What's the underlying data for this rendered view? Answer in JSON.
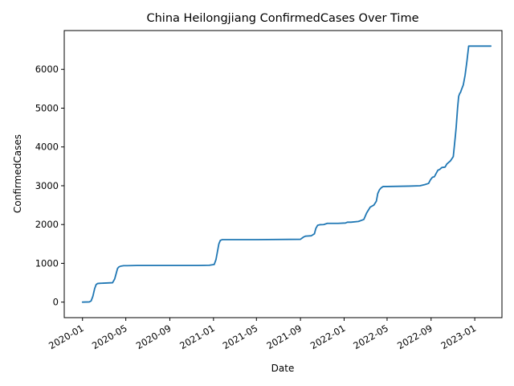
{
  "chart_data": {
    "type": "line",
    "title": "China Heilongjiang ConfirmedCases Over Time",
    "xlabel": "Date",
    "ylabel": "ConfirmedCases",
    "xlim": [
      "2019-11-11",
      "2023-03-18"
    ],
    "ylim": [
      -400,
      7000
    ],
    "x_ticks": [
      "2020-01",
      "2020-05",
      "2020-09",
      "2021-01",
      "2021-05",
      "2021-09",
      "2022-01",
      "2022-05",
      "2022-09",
      "2023-01"
    ],
    "y_ticks": [
      0,
      1000,
      2000,
      3000,
      4000,
      5000,
      6000
    ],
    "grid": false,
    "color": "#1f77b4",
    "series": [
      {
        "x": [
          "2020-01-01",
          "2020-01-20",
          "2020-01-25",
          "2020-01-30",
          "2020-02-04",
          "2020-02-08",
          "2020-02-12",
          "2020-02-18",
          "2020-03-01",
          "2020-03-25",
          "2020-03-31",
          "2020-04-08",
          "2020-04-12",
          "2020-04-18",
          "2020-04-25",
          "2020-05-05",
          "2020-06-01",
          "2020-10-01",
          "2020-11-20",
          "2020-12-20",
          "2021-01-03",
          "2021-01-08",
          "2021-01-12",
          "2021-01-16",
          "2021-01-20",
          "2021-01-25",
          "2021-02-01",
          "2021-05-01",
          "2021-09-01",
          "2021-09-10",
          "2021-09-15",
          "2021-10-01",
          "2021-10-10",
          "2021-10-14",
          "2021-10-19",
          "2021-10-25",
          "2021-11-05",
          "2021-11-15",
          "2021-11-25",
          "2021-12-15",
          "2022-01-05",
          "2022-01-10",
          "2022-01-20",
          "2022-02-10",
          "2022-02-25",
          "2022-03-05",
          "2022-03-15",
          "2022-03-25",
          "2022-04-01",
          "2022-04-05",
          "2022-04-10",
          "2022-04-15",
          "2022-04-20",
          "2022-05-01",
          "2022-06-01",
          "2022-07-01",
          "2022-08-01",
          "2022-08-15",
          "2022-08-25",
          "2022-08-30",
          "2022-09-05",
          "2022-09-10",
          "2022-09-20",
          "2022-09-25",
          "2022-10-01",
          "2022-10-10",
          "2022-10-15",
          "2022-10-25",
          "2022-11-02",
          "2022-11-08",
          "2022-11-10",
          "2022-11-14",
          "2022-11-17",
          "2022-11-20",
          "2022-11-22",
          "2022-11-25",
          "2022-11-30",
          "2022-12-05",
          "2022-12-10",
          "2022-12-15",
          "2022-12-18",
          "2022-12-20",
          "2022-12-22",
          "2023-01-01",
          "2023-02-15"
        ],
        "y": [
          0,
          5,
          30,
          150,
          350,
          450,
          480,
          485,
          490,
          500,
          600,
          870,
          910,
          930,
          940,
          940,
          945,
          945,
          945,
          950,
          970,
          1100,
          1300,
          1500,
          1590,
          1610,
          1610,
          1610,
          1620,
          1680,
          1700,
          1710,
          1760,
          1900,
          1980,
          1995,
          2000,
          2030,
          2030,
          2030,
          2040,
          2060,
          2060,
          2080,
          2130,
          2300,
          2450,
          2500,
          2600,
          2800,
          2900,
          2950,
          2980,
          2980,
          2985,
          2990,
          3000,
          3030,
          3060,
          3150,
          3220,
          3230,
          3400,
          3420,
          3470,
          3480,
          3560,
          3640,
          3750,
          4300,
          4500,
          5000,
          5300,
          5380,
          5400,
          5480,
          5600,
          5850,
          6200,
          6600,
          6600,
          6600,
          6600,
          6600,
          6600
        ]
      }
    ]
  }
}
